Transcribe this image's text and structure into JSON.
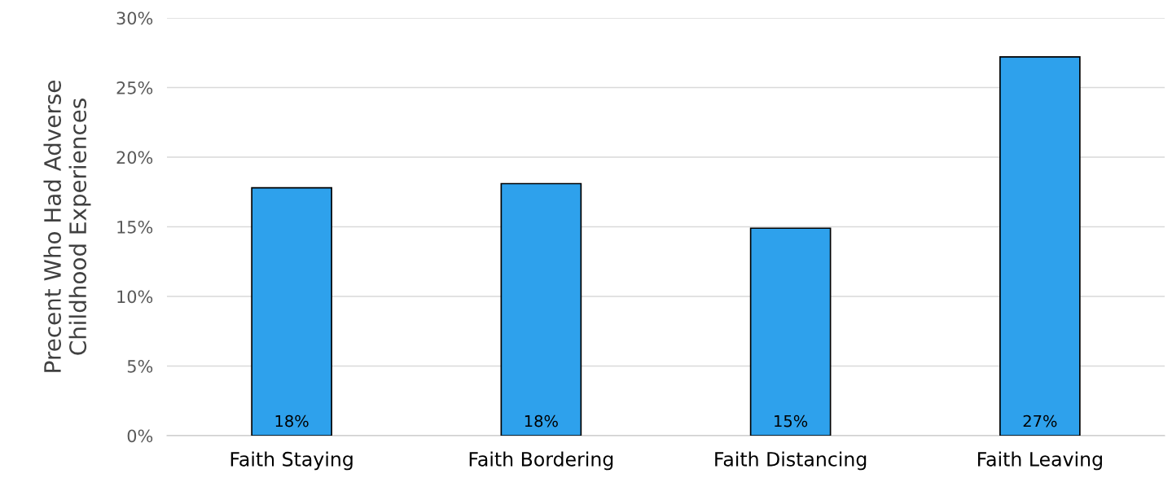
{
  "chart_data": {
    "type": "bar",
    "ylabel": "Precent Who Had Adverse\nChildhood Experiences",
    "categories": [
      "Faith Staying",
      "Faith Bordering",
      "Faith Distancing",
      "Faith Leaving"
    ],
    "values": [
      17.8,
      18.1,
      14.9,
      27.2
    ],
    "value_labels": [
      "18%",
      "18%",
      "15%",
      "27%"
    ],
    "color": "#2ea1ec",
    "ylim": [
      0,
      30
    ],
    "yticks": [
      {
        "value": 0,
        "label": "0%"
      },
      {
        "value": 5,
        "label": "5%"
      },
      {
        "value": 10,
        "label": "10%"
      },
      {
        "value": 15,
        "label": "15%"
      },
      {
        "value": 20,
        "label": "20%"
      },
      {
        "value": 25,
        "label": "25%"
      },
      {
        "value": 30,
        "label": "30%"
      }
    ],
    "grid": "y",
    "legend": false
  }
}
